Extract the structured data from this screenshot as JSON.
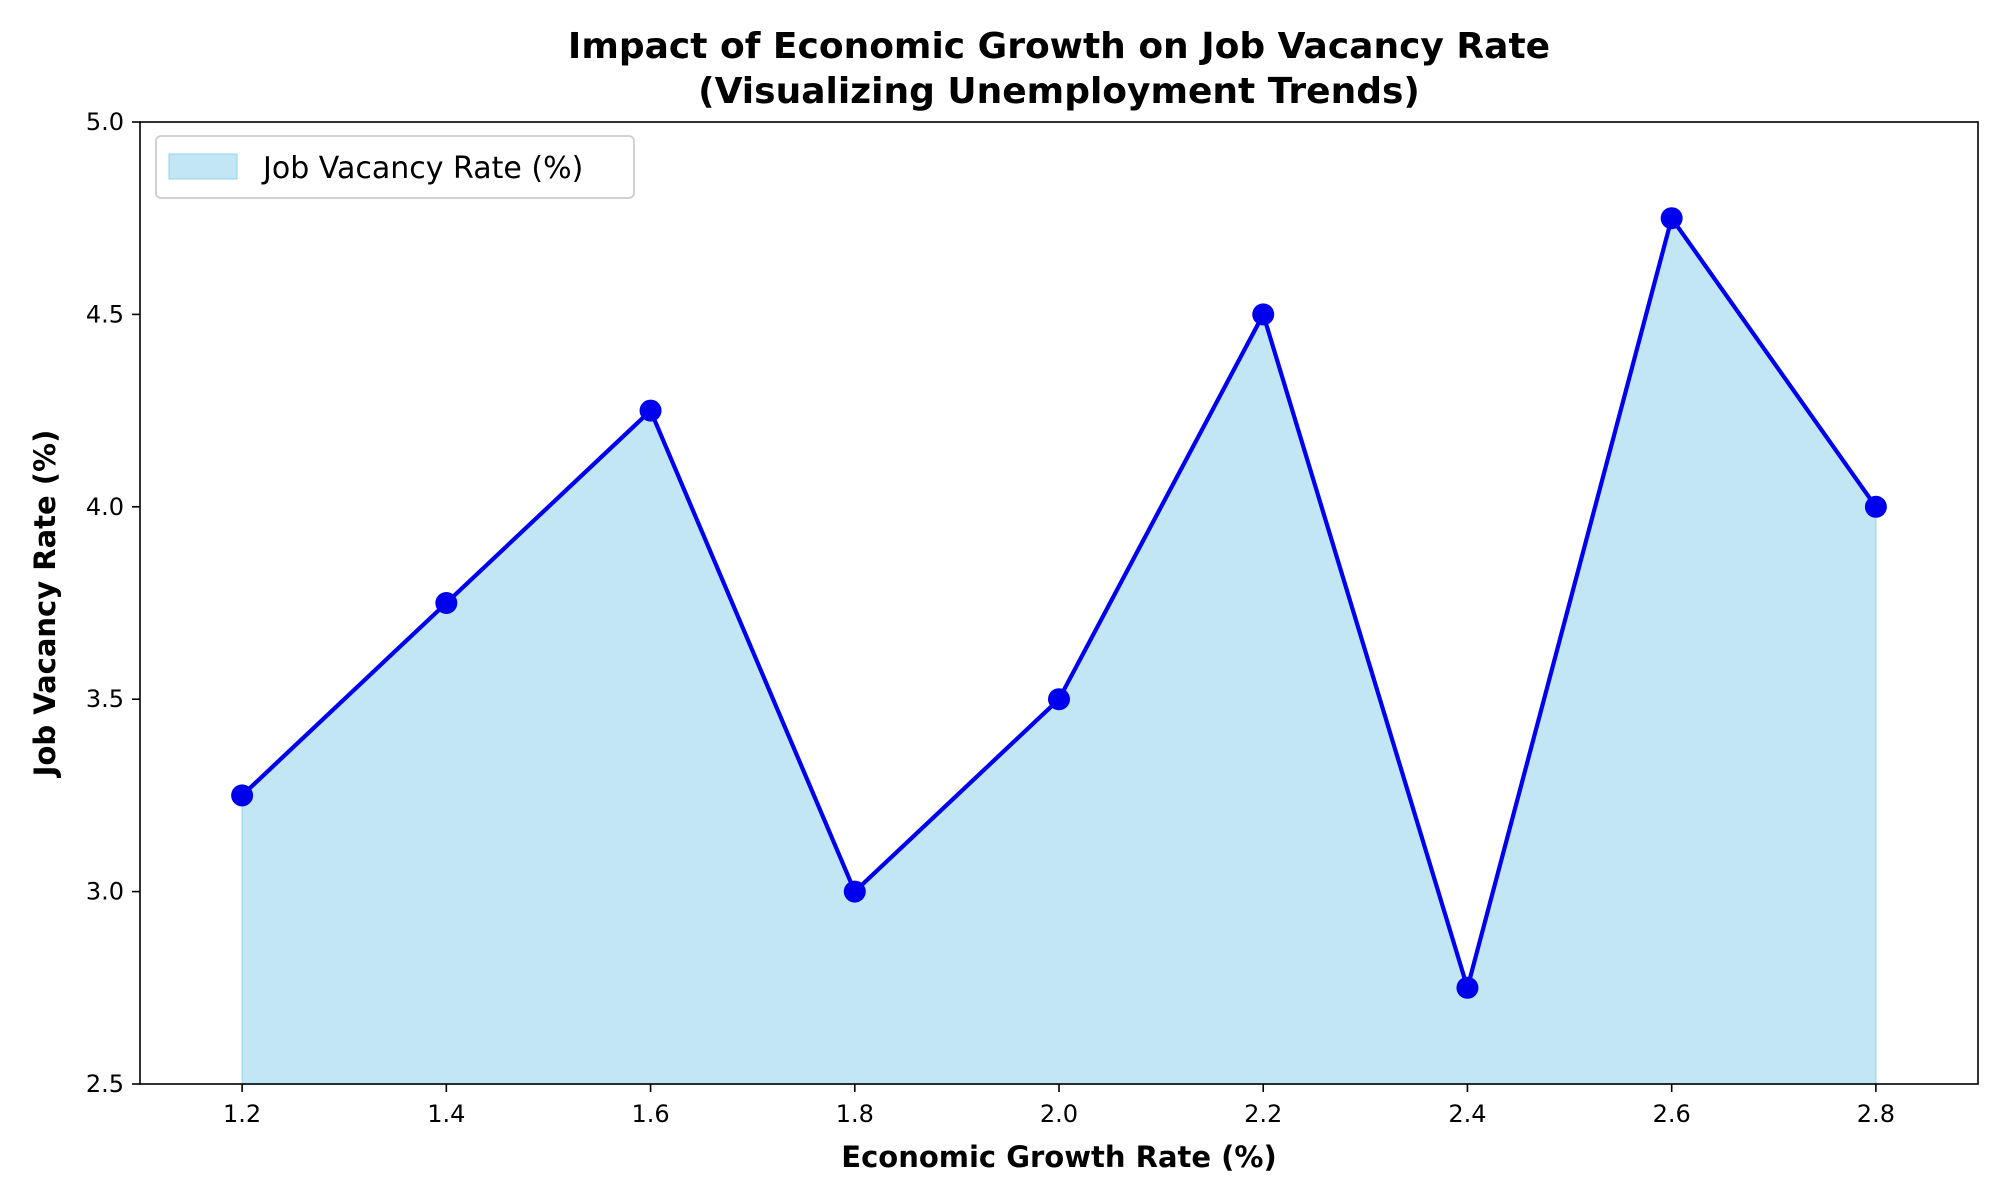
{
  "chart_data": {
    "type": "area",
    "title": [
      "Impact of Economic Growth on Job Vacancy Rate",
      "(Visualizing Unemployment Trends)"
    ],
    "xlabel": "Economic Growth Rate (%)",
    "ylabel": "Job Vacancy Rate (%)",
    "x": [
      1.2,
      1.4,
      1.6,
      1.8,
      2.0,
      2.2,
      2.4,
      2.6,
      2.8
    ],
    "series": [
      {
        "name": "Job Vacancy Rate (%)",
        "values": [
          3.25,
          3.75,
          4.25,
          3.0,
          3.5,
          4.5,
          2.75,
          4.75,
          4.0
        ],
        "line_color": "#0000ee",
        "marker_color": "#0000ee",
        "fill_color": "#87ceeb"
      }
    ],
    "xlim": [
      1.1,
      2.9
    ],
    "ylim": [
      2.5,
      5.0
    ],
    "xticks": [
      "1.2",
      "1.4",
      "1.6",
      "1.8",
      "2.0",
      "2.2",
      "2.4",
      "2.6",
      "2.8"
    ],
    "yticks": [
      "2.5",
      "3.0",
      "3.5",
      "4.0",
      "4.5",
      "5.0"
    ],
    "grid": false,
    "legend_position": "upper left"
  }
}
